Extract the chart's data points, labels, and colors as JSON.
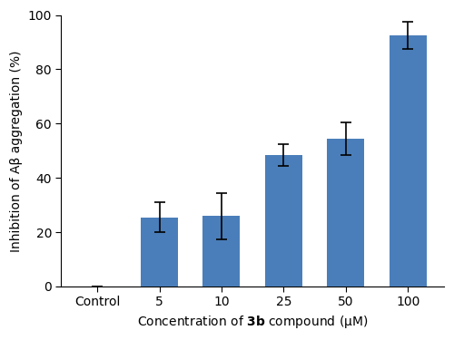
{
  "categories": [
    "Control",
    "5",
    "10",
    "25",
    "50",
    "100"
  ],
  "values": [
    0,
    25.5,
    26.0,
    48.5,
    54.5,
    92.5
  ],
  "errors": [
    0,
    5.5,
    8.5,
    4.0,
    6.0,
    5.0
  ],
  "bar_color": "#4a7eba",
  "bar_width": 0.6,
  "ylim": [
    0,
    100
  ],
  "yticks": [
    0,
    20,
    40,
    60,
    80,
    100
  ],
  "ylabel": "Inhibition of Aβ aggregation (%)",
  "xlabel": "Concentration of $\\mathbf{3b}$ compound (μM)",
  "figsize": [
    5.0,
    3.75
  ],
  "dpi": 100,
  "capsize": 4,
  "elinewidth": 1.2,
  "ecolor": "black"
}
